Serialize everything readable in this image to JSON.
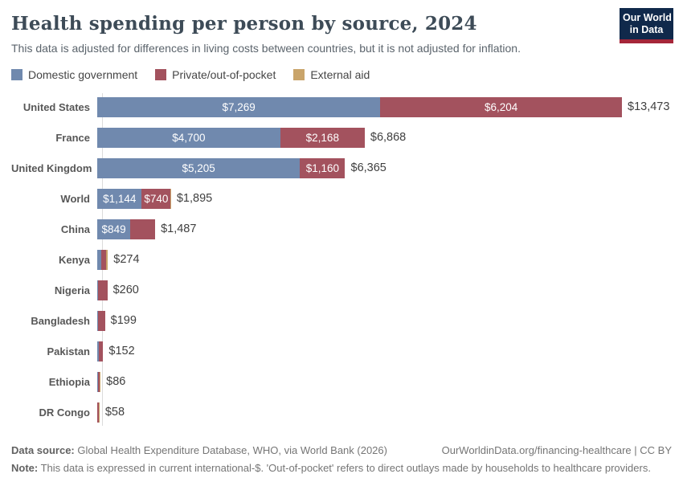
{
  "logo": {
    "line1": "Our World",
    "line2": "in Data"
  },
  "chart_data": {
    "type": "bar",
    "stacked": true,
    "orientation": "horizontal",
    "title": "Health spending per person by source, 2024",
    "subtitle": "This data is adjusted for differences in living costs between countries, but it is not adjusted for inflation.",
    "xlabel": "",
    "ylabel": "",
    "xmax": 13473,
    "grid": false,
    "legend_position": "top",
    "legend": [
      {
        "label": "Domestic government",
        "color": "#7089ae"
      },
      {
        "label": "Private/out-of-pocket",
        "color": "#a3525e"
      },
      {
        "label": "External aid",
        "color": "#c9a46a"
      }
    ],
    "rows": [
      {
        "label": "United States",
        "total": 13473,
        "total_label": "$13,473",
        "segments": [
          {
            "series": 0,
            "value": 7269,
            "label": "$7,269"
          },
          {
            "series": 1,
            "value": 6204,
            "label": "$6,204"
          }
        ]
      },
      {
        "label": "France",
        "total": 6868,
        "total_label": "$6,868",
        "segments": [
          {
            "series": 0,
            "value": 4700,
            "label": "$4,700"
          },
          {
            "series": 1,
            "value": 2168,
            "label": "$2,168"
          }
        ]
      },
      {
        "label": "United Kingdom",
        "total": 6365,
        "total_label": "$6,365",
        "segments": [
          {
            "series": 0,
            "value": 5205,
            "label": "$5,205"
          },
          {
            "series": 1,
            "value": 1160,
            "label": "$1,160"
          }
        ]
      },
      {
        "label": "World",
        "total": 1895,
        "total_label": "$1,895",
        "segments": [
          {
            "series": 0,
            "value": 1144,
            "label": "$1,144"
          },
          {
            "series": 1,
            "value": 740,
            "label": "$740"
          },
          {
            "series": 2,
            "value": 11,
            "label": ""
          }
        ]
      },
      {
        "label": "China",
        "total": 1487,
        "total_label": "$1,487",
        "segments": [
          {
            "series": 0,
            "value": 849,
            "label": "$849"
          },
          {
            "series": 1,
            "value": 638,
            "label": ""
          }
        ]
      },
      {
        "label": "Kenya",
        "total": 274,
        "total_label": "$274",
        "segments": [
          {
            "series": 0,
            "value": 103,
            "label": ""
          },
          {
            "series": 1,
            "value": 124,
            "label": ""
          },
          {
            "series": 2,
            "value": 47,
            "label": ""
          }
        ]
      },
      {
        "label": "Nigeria",
        "total": 260,
        "total_label": "$260",
        "segments": [
          {
            "series": 0,
            "value": 30,
            "label": ""
          },
          {
            "series": 1,
            "value": 230,
            "label": ""
          }
        ]
      },
      {
        "label": "Bangladesh",
        "total": 199,
        "total_label": "$199",
        "segments": [
          {
            "series": 0,
            "value": 14,
            "label": ""
          },
          {
            "series": 1,
            "value": 185,
            "label": ""
          }
        ]
      },
      {
        "label": "Pakistan",
        "total": 152,
        "total_label": "$152",
        "segments": [
          {
            "series": 0,
            "value": 40,
            "label": ""
          },
          {
            "series": 1,
            "value": 112,
            "label": ""
          }
        ]
      },
      {
        "label": "Ethiopia",
        "total": 86,
        "total_label": "$86",
        "segments": [
          {
            "series": 0,
            "value": 15,
            "label": ""
          },
          {
            "series": 1,
            "value": 50,
            "label": ""
          },
          {
            "series": 2,
            "value": 21,
            "label": ""
          }
        ]
      },
      {
        "label": "DR Congo",
        "total": 58,
        "total_label": "$58",
        "segments": [
          {
            "series": 0,
            "value": 8,
            "label": ""
          },
          {
            "series": 1,
            "value": 42,
            "label": ""
          },
          {
            "series": 2,
            "value": 8,
            "label": ""
          }
        ]
      }
    ]
  },
  "footer": {
    "datasource_label": "Data source:",
    "datasource_text": " Global Health Expenditure Database, WHO, via World Bank (2026)",
    "link_text": "OurWorldinData.org/financing-healthcare | CC BY",
    "note_label": "Note:",
    "note_text": " This data is expressed in current international-$. 'Out-of-pocket' refers to direct outlays made by households to healthcare providers."
  }
}
